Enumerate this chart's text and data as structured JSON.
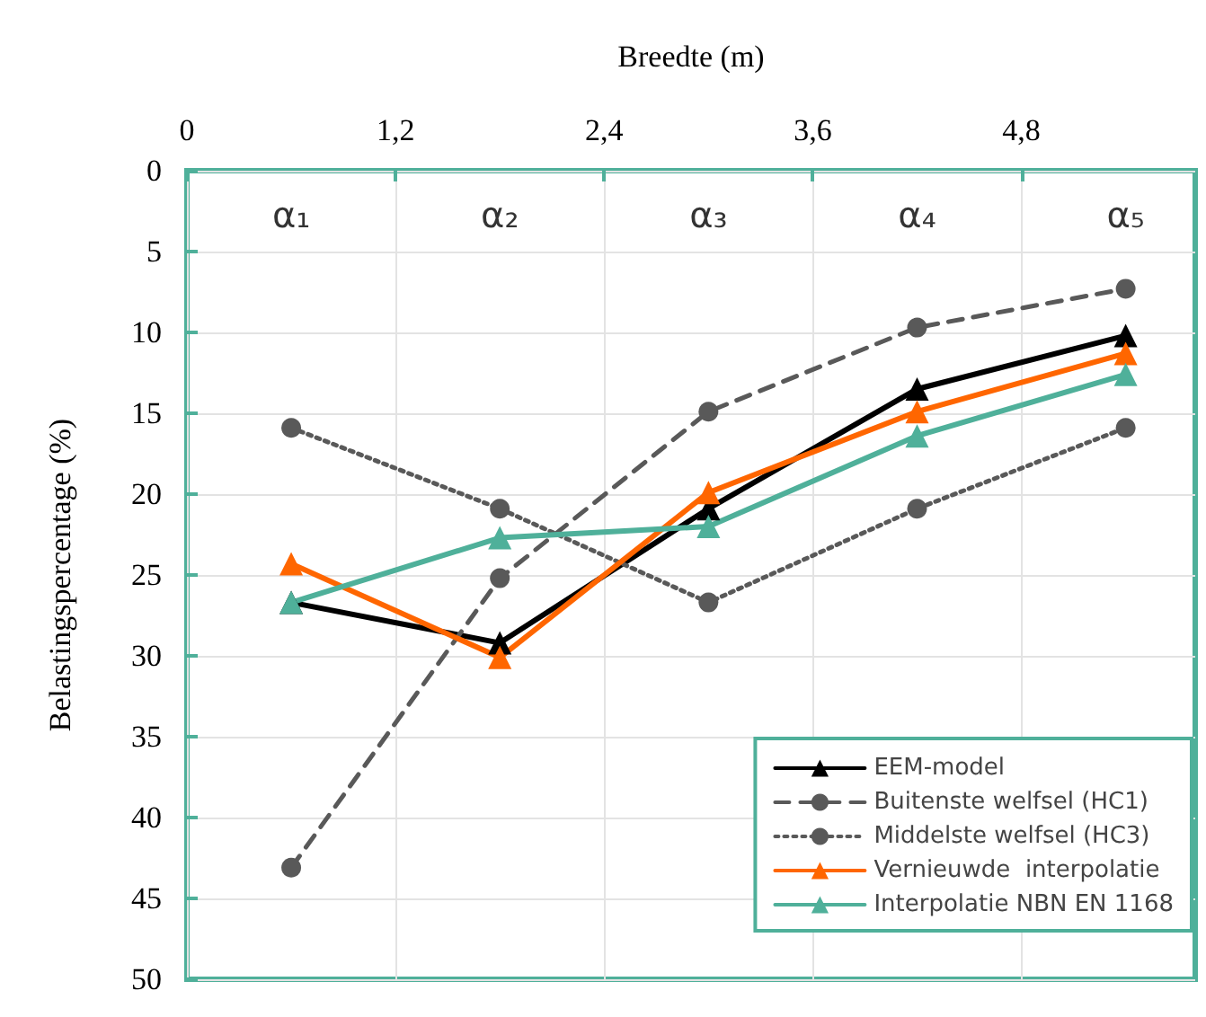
{
  "chart_data": {
    "type": "line",
    "xlabel": "Breedte (m)",
    "ylabel": "Belastingspercentage (%)",
    "x": [
      0.6,
      1.8,
      3.0,
      4.2,
      5.4
    ],
    "xlim": [
      0,
      5.8
    ],
    "xticks": [
      0,
      {
        "value": 1.2,
        "label": "1,2"
      },
      {
        "value": 2.4,
        "label": "2,4"
      },
      {
        "value": 3.6,
        "label": "3,6"
      },
      {
        "value": 4.8,
        "label": "4,8"
      }
    ],
    "ylim": [
      50,
      0
    ],
    "yticks": [
      0,
      5,
      10,
      15,
      20,
      25,
      30,
      35,
      40,
      45,
      50
    ],
    "grid": true,
    "legend": "bottom right",
    "series": [
      {
        "name": "EEM-model",
        "color": "#000000",
        "marker": "triangle",
        "line_style": "solid",
        "values": [
          26.7,
          29.2,
          20.9,
          13.5,
          10.2
        ]
      },
      {
        "name": "Buitenste welfsel (HC1)",
        "color": "#595959",
        "marker": "circle",
        "line_style": "dashed",
        "values": [
          43.1,
          25.2,
          14.9,
          9.7,
          7.3
        ]
      },
      {
        "name": "Middelste welfsel (HC3)",
        "color": "#595959",
        "marker": "circle",
        "line_style": "dotted",
        "values": [
          15.9,
          20.9,
          26.7,
          20.9,
          15.9
        ]
      },
      {
        "name": "Vernieuwde  interpolatie",
        "color": "#ff6600",
        "marker": "triangle",
        "line_style": "solid",
        "values": [
          24.3,
          30.1,
          19.9,
          14.9,
          11.3
        ]
      },
      {
        "name": "Interpolatie NBN EN 1168",
        "color": "#4fb09a",
        "marker": "triangle",
        "line_style": "solid",
        "values": [
          26.7,
          22.7,
          22.0,
          16.4,
          12.6
        ]
      }
    ],
    "annotations": [
      "α₁",
      "α₂",
      "α₃",
      "α₄",
      "α₅"
    ]
  }
}
